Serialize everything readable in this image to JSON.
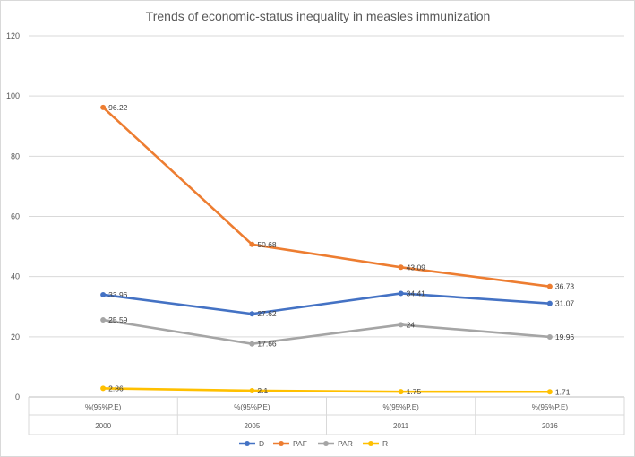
{
  "chart_data": {
    "type": "line",
    "title": "Trends of economic-status inequality in measles immunization",
    "categories": [
      {
        "sub": "%(95%P.E)",
        "year": "2000"
      },
      {
        "sub": "%(95%P.E)",
        "year": "2005"
      },
      {
        "sub": "%(95%P.E)",
        "year": "2011"
      },
      {
        "sub": "%(95%P.E)",
        "year": "2016"
      }
    ],
    "ylim": [
      0,
      120
    ],
    "yticks": [
      "0",
      "20",
      "40",
      "60",
      "80",
      "100",
      "120"
    ],
    "grid": true,
    "legend_position": "bottom",
    "series": [
      {
        "name": "D",
        "color": "#4472c4",
        "values": [
          33.96,
          27.62,
          34.41,
          31.07
        ],
        "labels": [
          "33.96",
          "27.62",
          "34.41",
          "31.07"
        ]
      },
      {
        "name": "PAF",
        "color": "#ed7d31",
        "values": [
          96.22,
          50.68,
          43.09,
          36.73
        ],
        "labels": [
          "96.22",
          "50.68",
          "43.09",
          "36.73"
        ]
      },
      {
        "name": "PAR",
        "color": "#a5a5a5",
        "values": [
          25.59,
          17.66,
          24,
          19.96
        ],
        "labels": [
          "25.59",
          "17.66",
          "24",
          "19.96"
        ]
      },
      {
        "name": "R",
        "color": "#ffc000",
        "values": [
          2.86,
          2.1,
          1.75,
          1.71
        ],
        "labels": [
          "2.86",
          "2.1",
          "1.75",
          "1.71"
        ]
      }
    ]
  }
}
